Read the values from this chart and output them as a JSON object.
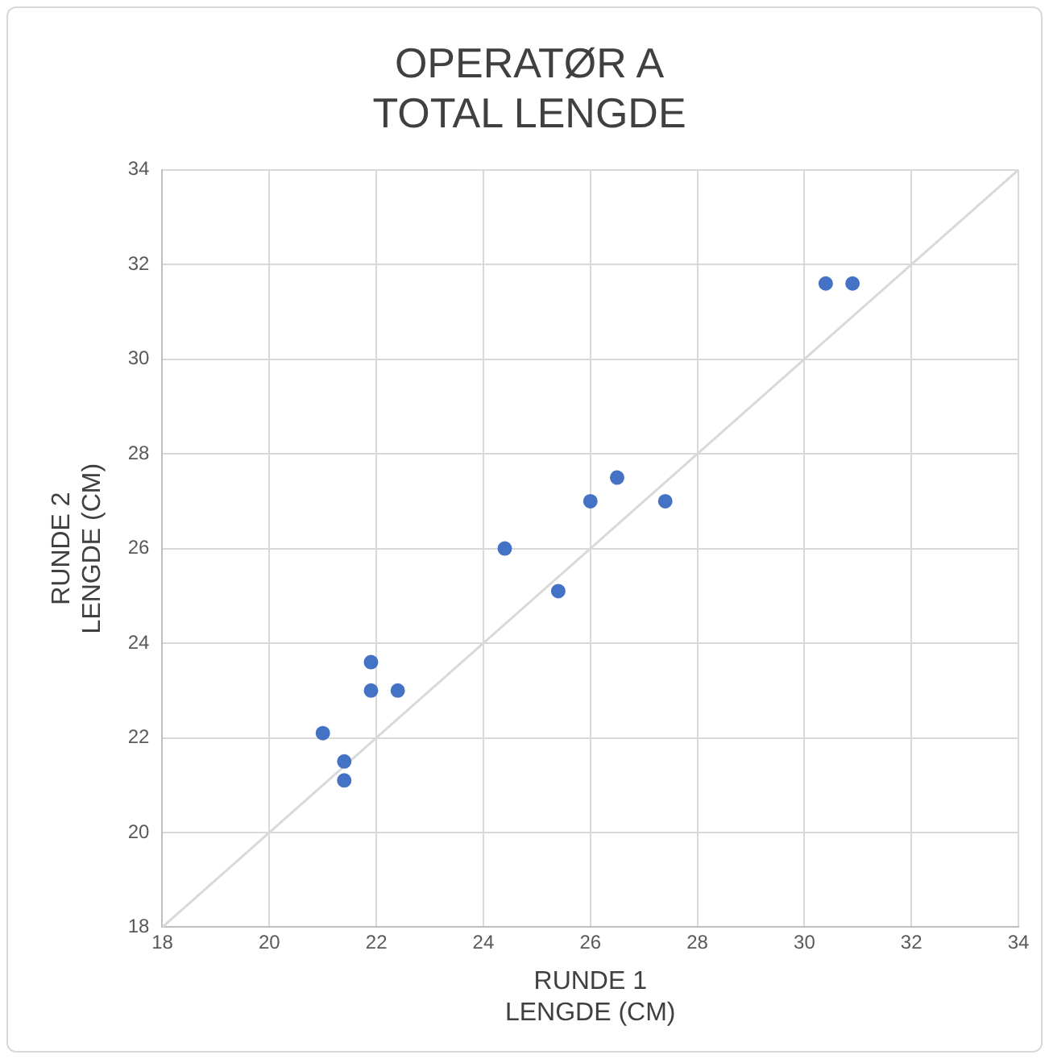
{
  "chart_data": {
    "type": "scatter",
    "title": "OPERATØR A\nTOTAL LENGDE",
    "xlabel": "RUNDE 1\nLENGDE (CM)",
    "ylabel": "RUNDE 2\nLENGDE (CM)",
    "series": [
      {
        "color": "#4472c4",
        "marker": "circle",
        "x": [
          30.4,
          30.9,
          26.5,
          26,
          27.4,
          24.4,
          25.4,
          21.9,
          21.9,
          22.4,
          21,
          21.4,
          21.4
        ],
        "values": [
          31.6,
          31.6,
          27.5,
          27,
          27,
          26,
          25.1,
          23.6,
          23,
          23,
          22.1,
          21.5,
          21.1
        ]
      },
      {
        "type": "line",
        "marker": "none",
        "color": "#d9d9d9",
        "x": [
          18,
          34
        ],
        "values": [
          18,
          34
        ]
      }
    ],
    "xlim": [
      18,
      34
    ],
    "xticks": [
      18,
      20,
      22,
      24,
      26,
      28,
      30,
      32,
      34
    ],
    "ylim": [
      18,
      34
    ],
    "yticks": [
      18,
      20,
      22,
      24,
      26,
      28,
      30,
      32,
      34
    ],
    "grid": true,
    "legend": false
  }
}
